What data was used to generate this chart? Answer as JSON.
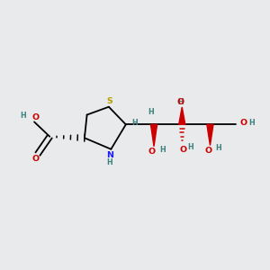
{
  "background_color": "#e8eaeb",
  "bond_color": "#000000",
  "atom_colors": {
    "S": "#b8a000",
    "N": "#1a1aff",
    "O": "#cc0000",
    "H": "#3d8080",
    "C": "#000000"
  },
  "figsize": [
    3.0,
    3.0
  ],
  "dpi": 100
}
